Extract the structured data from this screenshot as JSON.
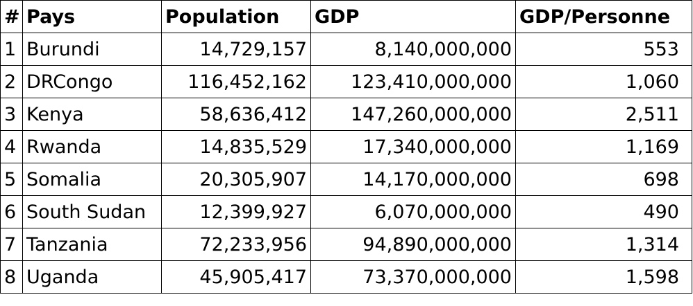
{
  "table": {
    "headers": [
      "#",
      "Pays",
      "Population",
      "GDP",
      "GDP/Personne"
    ],
    "rows": [
      [
        "1",
        "Burundi",
        "14,729,157",
        "8,140,000,000",
        "553"
      ],
      [
        "2",
        "DRCongo",
        "116,452,162",
        "123,410,000,000",
        "1,060"
      ],
      [
        "3",
        "Kenya",
        "58,636,412",
        "147,260,000,000",
        "2,511"
      ],
      [
        "4",
        "Rwanda",
        "14,835,529",
        "17,340,000,000",
        "1,169"
      ],
      [
        "5",
        "Somalia",
        "20,305,907",
        "14,170,000,000",
        "698"
      ],
      [
        "6",
        "South Sudan",
        "12,399,927",
        "6,070,000,000",
        "490"
      ],
      [
        "7",
        "Tanzania",
        "72,233,956",
        "94,890,000,000",
        "1,314"
      ],
      [
        "8",
        "Uganda",
        "45,905,417",
        "73,370,000,000",
        "1,598"
      ]
    ]
  }
}
